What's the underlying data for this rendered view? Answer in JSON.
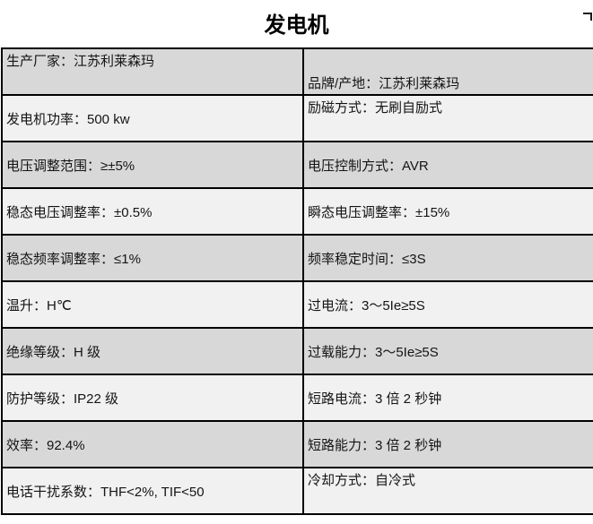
{
  "page_title": "发电机",
  "table": {
    "rows": [
      {
        "left": "生产厂家：江苏利莱森玛",
        "right": "品牌/产地：江苏利莱森玛"
      },
      {
        "left": "发电机功率：500 kw",
        "right": "励磁方式：无刷自励式"
      },
      {
        "left": "电压调整范围：≥±5%",
        "right": "电压控制方式：AVR"
      },
      {
        "left": "稳态电压调整率：±0.5%",
        "right": "瞬态电压调整率：±15%"
      },
      {
        "left": "稳态频率调整率：≤1%",
        "right": "频率稳定时间：≤3S"
      },
      {
        "left": "温升：H℃",
        "right": "过电流：3～5Ie≥5S"
      },
      {
        "left": "绝缘等级：H 级",
        "right": "过载能力：3～5Ie≥5S"
      },
      {
        "left": "防护等级：IP22 级",
        "right": "短路电流：3 倍 2 秒钟"
      },
      {
        "left": "效率：92.4%",
        "right": "短路能力：3 倍 2 秒钟"
      },
      {
        "left": "电话干扰系数：THF<2%, TIF<50",
        "right": "冷却方式：自冷式"
      }
    ]
  },
  "colors": {
    "row_shaded": "#d8d8d8",
    "row_light": "#f1f1f1",
    "border": "#000000",
    "page_background": "#ffffff"
  }
}
